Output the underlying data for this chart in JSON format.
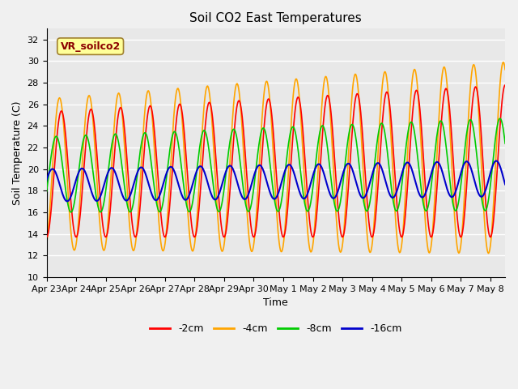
{
  "title": "Soil CO2 East Temperatures",
  "xlabel": "Time",
  "ylabel": "Soil Temperature (C)",
  "ylim": [
    10,
    33
  ],
  "yticks": [
    10,
    12,
    14,
    16,
    18,
    20,
    22,
    24,
    26,
    28,
    30,
    32
  ],
  "x_labels": [
    "Apr 23",
    "Apr 24",
    "Apr 25",
    "Apr 26",
    "Apr 27",
    "Apr 28",
    "Apr 29",
    "Apr 30",
    "May 1",
    "May 2",
    "May 3",
    "May 4",
    "May 5",
    "May 6",
    "May 7",
    "May 8"
  ],
  "annotation_text": "VR_soilco2",
  "annotation_color": "#8B0000",
  "annotation_bg": "#FFFF99",
  "line_colors": {
    "-2cm": "#FF0000",
    "-4cm": "#FFA500",
    "-8cm": "#00CC00",
    "-16cm": "#0000CC"
  },
  "fig_facecolor": "#F0F0F0",
  "ax_facecolor": "#E8E8E8",
  "grid_color": "#FFFFFF",
  "title_fontsize": 11,
  "axis_fontsize": 9,
  "tick_fontsize": 8,
  "n_days": 15.5,
  "points_per_day": 48,
  "base_mean": 19.0,
  "trend_rate": 0.12
}
